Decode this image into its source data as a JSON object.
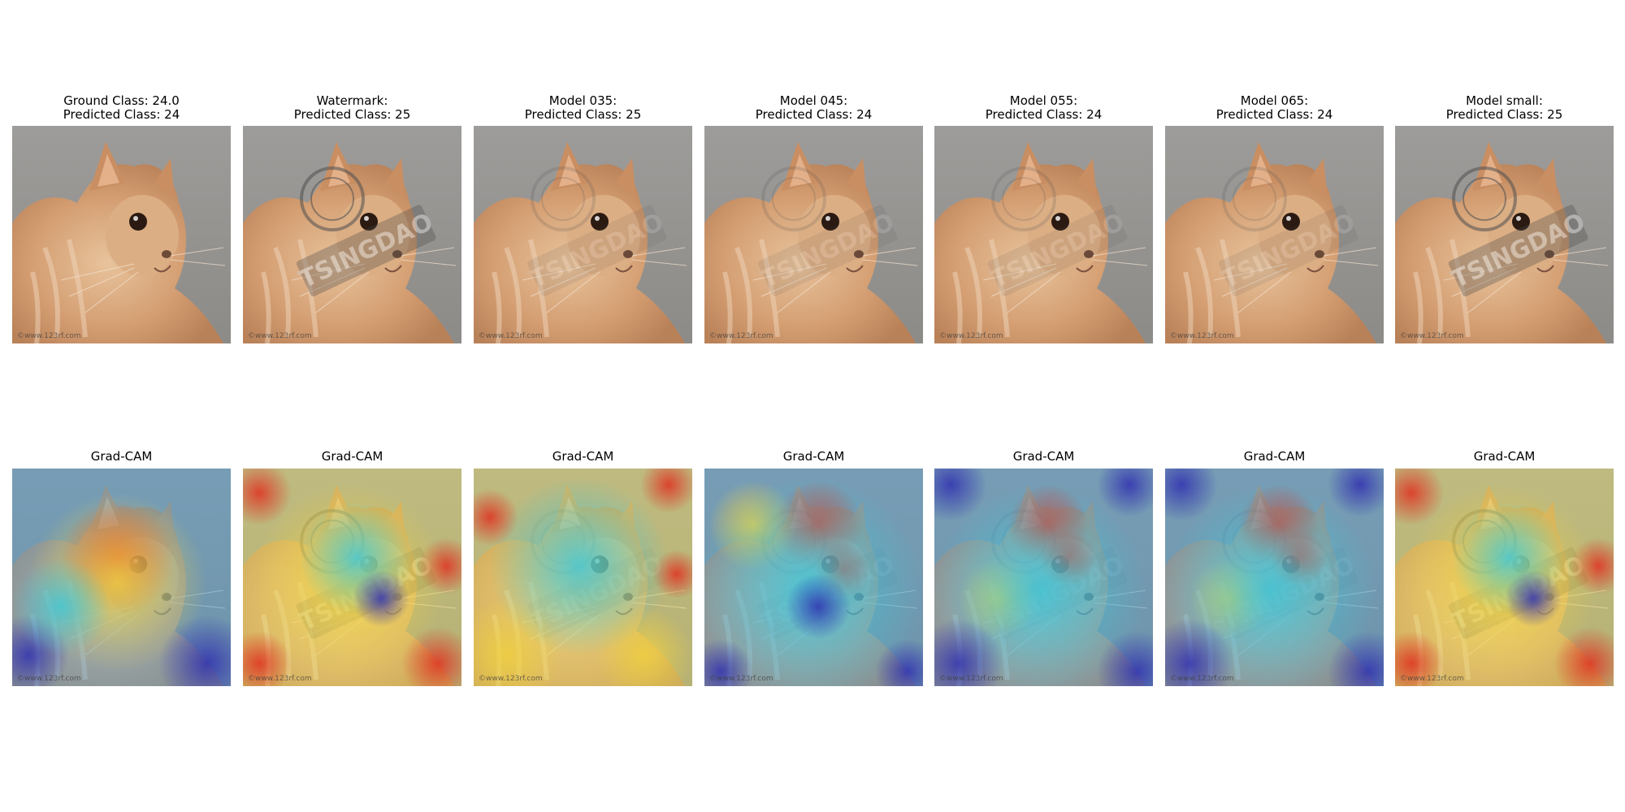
{
  "panels_top": [
    {
      "title_line1": "Ground Class: 24.0",
      "title_line2": "Predicted Class: 24",
      "watermark": "none"
    },
    {
      "title_line1": "Watermark:",
      "title_line2": "Predicted Class: 25",
      "watermark": "strong"
    },
    {
      "title_line1": "Model 035:",
      "title_line2": "Predicted Class: 25",
      "watermark": "faint"
    },
    {
      "title_line1": "Model 045:",
      "title_line2": "Predicted Class: 24",
      "watermark": "faint"
    },
    {
      "title_line1": "Model 055:",
      "title_line2": "Predicted Class: 24",
      "watermark": "faint"
    },
    {
      "title_line1": "Model 065:",
      "title_line2": "Predicted Class: 24",
      "watermark": "faint"
    },
    {
      "title_line1": "Model small:",
      "title_line2": "Predicted Class: 25",
      "watermark": "strong"
    }
  ],
  "panels_bottom": [
    {
      "title": "Grad-CAM",
      "heatmap": "center-hot"
    },
    {
      "title": "Grad-CAM",
      "heatmap": "border-hot"
    },
    {
      "title": "Grad-CAM",
      "heatmap": "border-hot-cool"
    },
    {
      "title": "Grad-CAM",
      "heatmap": "head-hot"
    },
    {
      "title": "Grad-CAM",
      "heatmap": "head-hot-cool"
    },
    {
      "title": "Grad-CAM",
      "heatmap": "head-hot-cool"
    },
    {
      "title": "Grad-CAM",
      "heatmap": "border-hot"
    }
  ],
  "watermark_text": "TSINGDAO",
  "image_credit": "©www.123rf.com",
  "colors": {
    "cat": "#d4a07a",
    "background": "#9a9a98",
    "hot": "#e03020",
    "warm": "#f0d040",
    "cool": "#40c8d8",
    "cold": "#3030b0"
  }
}
